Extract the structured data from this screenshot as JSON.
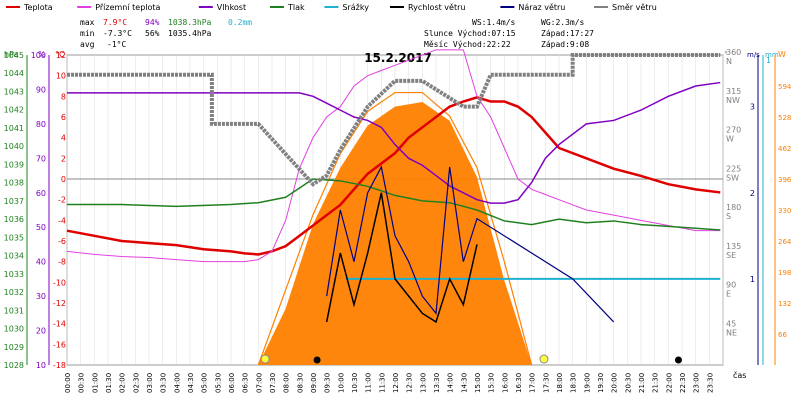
{
  "legend": [
    {
      "label": "Teplota",
      "color": "#e00000"
    },
    {
      "label": "Přízemní teplota",
      "color": "#e040e0"
    },
    {
      "label": "Vlhkost",
      "color": "#8000c0"
    },
    {
      "label": "Tlak",
      "color": "#208020"
    },
    {
      "label": "Srážky",
      "color": "#20b0d0"
    },
    {
      "label": "Rychlost větru",
      "color": "#000000"
    },
    {
      "label": "Náraz větru",
      "color": "#000080"
    },
    {
      "label": "Směr větru",
      "color": "#808080"
    }
  ],
  "stats": {
    "max_label": "max",
    "max_t": "7.9°C",
    "max_h": "94%",
    "max_p": "1038.3hPa",
    "max_r": "0.2mm",
    "min_label": "min",
    "min_t": "-7.3°C",
    "min_h": "56%",
    "min_p": "1035.4hPa",
    "avg_label": "avg",
    "avg_t": "-1°C",
    "ws": "WS:1.4m/s",
    "wg": "WG:2.3m/s",
    "sun_rise": "Slunce Východ:07:15",
    "sun_set": "Západ:17:27",
    "moon_rise": "Měsíc  Východ:22:22",
    "moon_set": "Západ:9:08"
  },
  "title": "15.2.2017",
  "axis_units": {
    "hpa": "hPa",
    "pct": "%",
    "deg": "°C",
    "dir": "°",
    "ms": "m/s",
    "mm": "mm",
    "w": "W",
    "time": "čas"
  },
  "chart_data": {
    "type": "line",
    "title": "15.2.2017",
    "x_ticks": [
      "00:00",
      "00:30",
      "01:00",
      "01:30",
      "02:00",
      "02:30",
      "03:00",
      "03:30",
      "04:00",
      "04:30",
      "05:00",
      "05:30",
      "06:00",
      "06:30",
      "07:00",
      "07:30",
      "08:00",
      "08:30",
      "09:00",
      "09:30",
      "10:00",
      "10:30",
      "11:00",
      "11:30",
      "12:00",
      "12:30",
      "13:00",
      "13:30",
      "14:00",
      "14:30",
      "15:00",
      "15:30",
      "16:00",
      "16:30",
      "17:00",
      "17:30",
      "18:00",
      "18:30",
      "19:00",
      "19:30",
      "20:00",
      "20:30",
      "21:00",
      "21:30",
      "22:00",
      "22:30",
      "23:00",
      "23:30"
    ],
    "axes": {
      "pressure_hPa": [
        "1045",
        "1044",
        "1043",
        "1042",
        "1041",
        "1040",
        "1039",
        "1038",
        "1037",
        "1036",
        "1035",
        "1034",
        "1033",
        "1032",
        "1031",
        "1030",
        "1029",
        "1028"
      ],
      "humidity_pct": [
        "100",
        "90",
        "80",
        "70",
        "60",
        "50",
        "40",
        "30",
        "20",
        "10"
      ],
      "temp_C": [
        "12",
        "10",
        "8",
        "6",
        "4",
        "2",
        "0",
        "-2",
        "-4",
        "-6",
        "-8",
        "-10",
        "-12",
        "-14",
        "-16",
        "-18"
      ],
      "wind_dir": [
        {
          "deg": "360",
          "c": "N"
        },
        {
          "deg": "315",
          "c": "NW"
        },
        {
          "deg": "270",
          "c": "W"
        },
        {
          "deg": "225",
          "c": "SW"
        },
        {
          "deg": "180",
          "c": "S"
        },
        {
          "deg": "135",
          "c": "SE"
        },
        {
          "deg": "90",
          "c": "E"
        },
        {
          "deg": "45",
          "c": "NE"
        }
      ],
      "wind_ms": [
        "3",
        "2",
        "1"
      ],
      "rain_mm": [
        "1"
      ],
      "solar_W": [
        "594",
        "528",
        "462",
        "396",
        "330",
        "264",
        "198",
        "132",
        "66"
      ]
    },
    "ylim_temp": [
      -18,
      12
    ],
    "ylim_humidity": [
      10,
      100
    ],
    "ylim_pressure": [
      1028,
      1045
    ],
    "series": [
      {
        "name": "Teplota",
        "color": "#e00000",
        "x": [
          0,
          1,
          2,
          3,
          4,
          5,
          6,
          6.5,
          7,
          7.5,
          8,
          8.5,
          9,
          9.5,
          10,
          10.5,
          11,
          11.5,
          12,
          12.5,
          13,
          13.5,
          14,
          14.5,
          15,
          15.5,
          16,
          16.5,
          17,
          17.5,
          18,
          19,
          20,
          21,
          22,
          23,
          23.9
        ],
        "y": [
          -5,
          -5.5,
          -6,
          -6.2,
          -6.4,
          -6.8,
          -7,
          -7.2,
          -7.3,
          -7,
          -6.5,
          -5.5,
          -4.5,
          -3.5,
          -2.5,
          -1,
          0.5,
          1.5,
          2.5,
          4,
          5,
          6,
          7,
          7.5,
          7.9,
          7.5,
          7.5,
          7,
          6,
          4.5,
          3,
          2,
          1,
          0.3,
          -0.5,
          -1,
          -1.3
        ]
      },
      {
        "name": "Přízemní teplota",
        "color": "#e040e0",
        "x": [
          0,
          1,
          2,
          3,
          4,
          5,
          6,
          6.5,
          7,
          7.5,
          8,
          8.5,
          9,
          9.5,
          10,
          10.5,
          11,
          11.5,
          12,
          12.5,
          13,
          13.5,
          14,
          14.5,
          15,
          15.5,
          16,
          16.5,
          17,
          17.5,
          18,
          19,
          20,
          21,
          22,
          23,
          23.9
        ],
        "y": [
          -7,
          -7.3,
          -7.5,
          -7.6,
          -7.8,
          -8,
          -8,
          -8,
          -7.8,
          -7,
          -4,
          1,
          4,
          6,
          7,
          9,
          10,
          10.5,
          11,
          11.5,
          12,
          12.5,
          12.5,
          12.5,
          8,
          6,
          3,
          0,
          -1,
          -1.5,
          -2,
          -3,
          -3.5,
          -4,
          -4.5,
          -5,
          -5
        ]
      },
      {
        "name": "Vlhkost",
        "color": "#8000c0",
        "x": [
          0,
          1,
          2,
          3,
          4,
          5,
          6,
          6.5,
          7,
          7.5,
          8,
          8.5,
          9,
          9.5,
          10,
          10.5,
          11,
          11.5,
          12,
          12.5,
          13,
          13.5,
          14,
          14.5,
          15,
          15.5,
          16,
          16.5,
          17,
          17.5,
          18,
          19,
          20,
          21,
          22,
          23,
          23.9
        ],
        "y": [
          89,
          89,
          89,
          89,
          89,
          89,
          89,
          89,
          89,
          89,
          89,
          89,
          88,
          86,
          84,
          82,
          81,
          79,
          74,
          70,
          68,
          65,
          62,
          60,
          58,
          57,
          57,
          58,
          63,
          70,
          74,
          80,
          81,
          84,
          88,
          91,
          92
        ]
      },
      {
        "name": "Tlak",
        "color": "#208020",
        "x": [
          0,
          2,
          4,
          6,
          7,
          8,
          9,
          10,
          11,
          12,
          13,
          14,
          15,
          16,
          17,
          18,
          19,
          20,
          21,
          22,
          23,
          23.9
        ],
        "y": [
          1036.8,
          1036.8,
          1036.7,
          1036.8,
          1036.9,
          1037.2,
          1038.2,
          1038.1,
          1037.8,
          1037.3,
          1037.0,
          1036.9,
          1036.5,
          1035.9,
          1035.7,
          1036.0,
          1035.8,
          1035.9,
          1035.7,
          1035.6,
          1035.5,
          1035.4
        ]
      },
      {
        "name": "Srážky",
        "color": "#20b0d0",
        "x": [
          10.2,
          23.9
        ],
        "y": [
          0.2,
          0.2
        ]
      },
      {
        "name": "Směr větru",
        "color": "#808080",
        "x": [
          0,
          5.3,
          5.3,
          7,
          9,
          9.5,
          10,
          11,
          12,
          13,
          14,
          14.5,
          15,
          15.5,
          16,
          17,
          18,
          18.5,
          18.5,
          23.9
        ],
        "y": [
          337,
          337,
          280,
          280,
          210,
          220,
          250,
          300,
          330,
          330,
          310,
          300,
          300,
          337,
          337,
          337,
          337,
          337,
          360,
          360
        ]
      }
    ],
    "wind_speed_ms": {
      "x": [
        9.5,
        10,
        10.5,
        11,
        11.5,
        12,
        12.5,
        13,
        13.5,
        14,
        14.5,
        15
      ],
      "y": [
        0.5,
        1.3,
        0.7,
        1.3,
        2,
        1,
        0.8,
        0.6,
        0.5,
        1,
        0.7,
        1.4
      ]
    },
    "wind_gust_ms": {
      "x": [
        9.5,
        10,
        10.5,
        11,
        11.5,
        12,
        12.5,
        13,
        13.5,
        14,
        14.5,
        15,
        18.5,
        20
      ],
      "y": [
        0.8,
        1.8,
        1.2,
        2,
        2.3,
        1.5,
        1.2,
        0.8,
        0.6,
        2.3,
        1.2,
        1.7,
        1,
        0.5
      ]
    },
    "solar_W": {
      "x": [
        7,
        8,
        9,
        10,
        11,
        12,
        13,
        14,
        15,
        16,
        17
      ],
      "y": [
        0,
        120,
        300,
        420,
        510,
        550,
        560,
        520,
        400,
        180,
        0
      ]
    },
    "solar_theoretical_W": {
      "x": [
        7,
        8,
        9,
        10,
        11,
        12,
        13,
        14,
        15,
        16,
        17
      ],
      "y": [
        0,
        160,
        320,
        450,
        540,
        580,
        580,
        530,
        420,
        220,
        0
      ]
    }
  }
}
